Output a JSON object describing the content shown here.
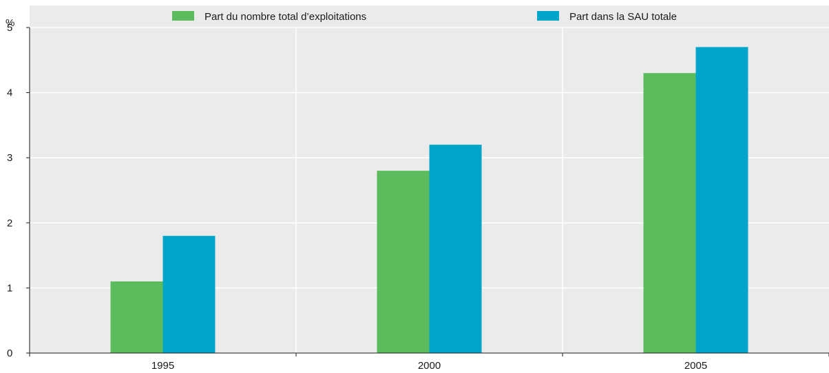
{
  "chart_data": {
    "type": "bar",
    "categories": [
      "1995",
      "2000",
      "2005"
    ],
    "series": [
      {
        "name": "Part du nombre total d’exploitations",
        "values": [
          1.1,
          2.8,
          4.3
        ],
        "color": "#5cbb5c"
      },
      {
        "name": "Part dans la SAU totale",
        "values": [
          1.8,
          3.2,
          4.7
        ],
        "color": "#00a5c9"
      }
    ],
    "ylabel": "%",
    "ylim": [
      0,
      5
    ],
    "yticks": [
      0,
      1,
      2,
      3,
      4,
      5
    ],
    "grid": true,
    "legend_position": "top",
    "colors": {
      "plot_background": "#ebebeb",
      "gridline": "#ffffff",
      "axis": "#1a1a1a"
    }
  }
}
